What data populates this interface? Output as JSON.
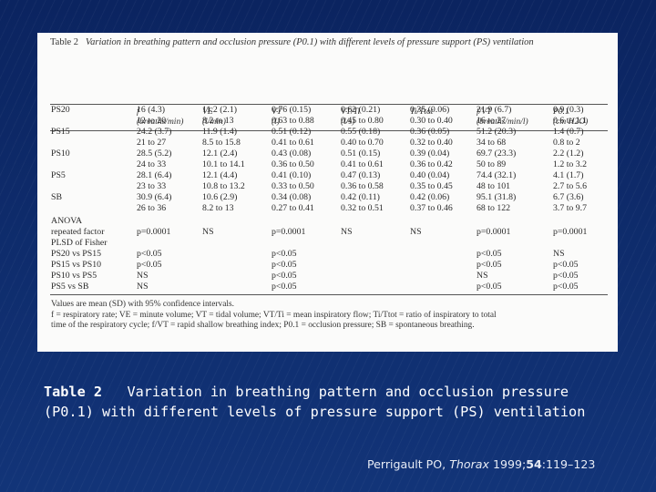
{
  "table": {
    "title_label": "Table 2",
    "title_text": "Variation in breathing pattern and occlusion pressure (P0.1) with different levels of pressure support (PS) ventilation",
    "headers": [
      {
        "name": "",
        "unit": ""
      },
      {
        "name": "f",
        "unit": "(breaths/min)"
      },
      {
        "name": "VE",
        "unit": "(l/min)"
      },
      {
        "name": "VT",
        "unit": "(l)"
      },
      {
        "name": "VT/Ti",
        "unit": "(l/s)"
      },
      {
        "name": "Ti/Ttot",
        "unit": ""
      },
      {
        "name": "f/VT",
        "unit": "(breaths/min/l)"
      },
      {
        "name": "P0.1",
        "unit": "(cm H2O)"
      }
    ],
    "rows": [
      [
        "PS20",
        "16 (4.3)",
        "11.2 (2.1)",
        "0.76 (0.15)",
        "0.62 (0.21)",
        "0.35 (0.06)",
        "21.9 (6.7)",
        "0.9 (0.3)"
      ],
      [
        "",
        "12 to 20",
        "8.2 to 13",
        "0.63 to 0.88",
        "0.45 to 0.80",
        "0.30 to 0.40",
        "16 to 27",
        "0.6 to 1.1"
      ],
      [
        "PS15",
        "24.2 (3.7)",
        "11.9 (1.4)",
        "0.51 (0.12)",
        "0.55 (0.18)",
        "0.36 (0.05)",
        "51.2 (20.3)",
        "1.4 (0.7)"
      ],
      [
        "",
        "21 to 27",
        "8.5 to 15.8",
        "0.41 to 0.61",
        "0.40 to 0.70",
        "0.32 to 0.40",
        "34 to 68",
        "0.8 to 2"
      ],
      [
        "PS10",
        "28.5 (5.2)",
        "12.1 (2.4)",
        "0.43 (0.08)",
        "0.51 (0.15)",
        "0.39 (0.04)",
        "69.7 (23.3)",
        "2.2 (1.2)"
      ],
      [
        "",
        "24 to 33",
        "10.1 to 14.1",
        "0.36 to 0.50",
        "0.41 to 0.61",
        "0.36 to 0.42",
        "50 to 89",
        "1.2 to 3.2"
      ],
      [
        "PS5",
        "28.1 (6.4)",
        "12.1 (4.4)",
        "0.41 (0.10)",
        "0.47 (0.13)",
        "0.40 (0.04)",
        "74.4 (32.1)",
        "4.1 (1.7)"
      ],
      [
        "",
        "23 to 33",
        "10.8 to 13.2",
        "0.33 to 0.50",
        "0.36 to 0.58",
        "0.35 to 0.45",
        "48 to 101",
        "2.7 to 5.6"
      ],
      [
        "SB",
        "30.9 (6.4)",
        "10.6 (2.9)",
        "0.34 (0.08)",
        "0.42 (0.11)",
        "0.42 (0.06)",
        "95.1 (31.8)",
        "6.7 (3.6)"
      ],
      [
        "",
        "26 to 36",
        "8.2 to 13",
        "0.27 to 0.41",
        "0.32 to 0.51",
        "0.37 to 0.46",
        "68 to 122",
        "3.7 to 9.7"
      ]
    ],
    "anova_rows": [
      [
        "ANOVA",
        "",
        "",
        "",
        "",
        "",
        "",
        ""
      ],
      [
        "repeated factor",
        "p=0.0001",
        "NS",
        "p=0.0001",
        "NS",
        "NS",
        "p=0.0001",
        "p=0.0001"
      ],
      [
        "PLSD of Fisher",
        "",
        "",
        "",
        "",
        "",
        "",
        ""
      ],
      [
        "PS20 vs PS15",
        "p<0.05",
        "",
        "p<0.05",
        "",
        "",
        "p<0.05",
        "NS"
      ],
      [
        "PS15 vs PS10",
        "p<0.05",
        "",
        "p<0.05",
        "",
        "",
        "p<0.05",
        "p<0.05"
      ],
      [
        "PS10 vs PS5",
        "NS",
        "",
        "p<0.05",
        "",
        "",
        "NS",
        "p<0.05"
      ],
      [
        "PS5 vs SB",
        "NS",
        "",
        "p<0.05",
        "",
        "",
        "p<0.05",
        "p<0.05"
      ]
    ],
    "notes": [
      "Values are mean (SD) with 95% confidence intervals.",
      "f = respiratory rate; VE = minute volume; VT = tidal volume; VT/Ti = mean inspiratory flow; Ti/Ttot = ratio of inspiratory to total",
      "time of the respiratory cycle; f/VT = rapid shallow breathing index; P0.1 = occlusion pressure; SB = spontaneous breathing."
    ]
  },
  "caption": {
    "label": "Table 2",
    "text": "Variation in breathing pattern and occlusion pressure (P0.1) with different levels of pressure support (PS) ventilation"
  },
  "citation": {
    "authors": "Perrigault PO,",
    "journal": "Thorax",
    "year": "1999;",
    "volume": "54",
    "pages": ":119–123"
  }
}
